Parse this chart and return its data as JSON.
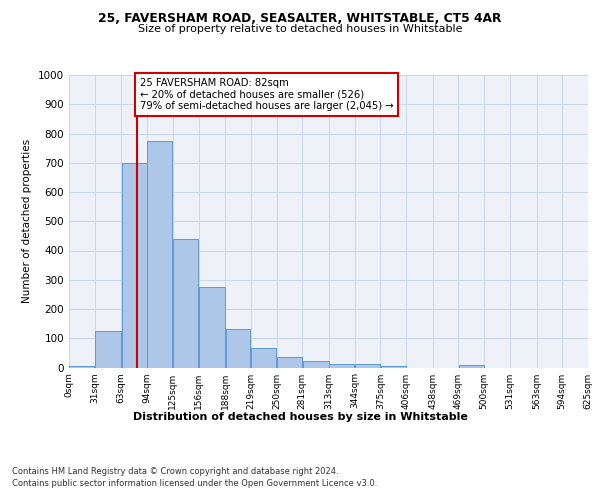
{
  "title1": "25, FAVERSHAM ROAD, SEASALTER, WHITSTABLE, CT5 4AR",
  "title2": "Size of property relative to detached houses in Whitstable",
  "xlabel": "Distribution of detached houses by size in Whitstable",
  "ylabel": "Number of detached properties",
  "bar_values": [
    5,
    125,
    700,
    775,
    440,
    275,
    130,
    65,
    35,
    22,
    12,
    12,
    5,
    0,
    0,
    10,
    0,
    0,
    0,
    0
  ],
  "bin_edges": [
    0,
    31,
    63,
    94,
    125,
    156,
    188,
    219,
    250,
    281,
    313,
    344,
    375,
    406,
    438,
    469,
    500,
    531,
    563,
    594,
    625
  ],
  "tick_labels": [
    "0sqm",
    "31sqm",
    "63sqm",
    "94sqm",
    "125sqm",
    "156sqm",
    "188sqm",
    "219sqm",
    "250sqm",
    "281sqm",
    "313sqm",
    "344sqm",
    "375sqm",
    "406sqm",
    "438sqm",
    "469sqm",
    "500sqm",
    "531sqm",
    "563sqm",
    "594sqm",
    "625sqm"
  ],
  "bar_color": "#aec6e8",
  "bar_edge_color": "#5b9bd5",
  "grid_color": "#c8d8e8",
  "background_color": "#eef2f8",
  "vline_x": 82,
  "vline_color": "#cc0000",
  "annotation_text": "25 FAVERSHAM ROAD: 82sqm\n← 20% of detached houses are smaller (526)\n79% of semi-detached houses are larger (2,045) →",
  "annotation_box_color": "#ffffff",
  "annotation_box_edge": "#cc0000",
  "ylim": [
    0,
    1000
  ],
  "yticks": [
    0,
    100,
    200,
    300,
    400,
    500,
    600,
    700,
    800,
    900,
    1000
  ],
  "footnote1": "Contains HM Land Registry data © Crown copyright and database right 2024.",
  "footnote2": "Contains public sector information licensed under the Open Government Licence v3.0."
}
